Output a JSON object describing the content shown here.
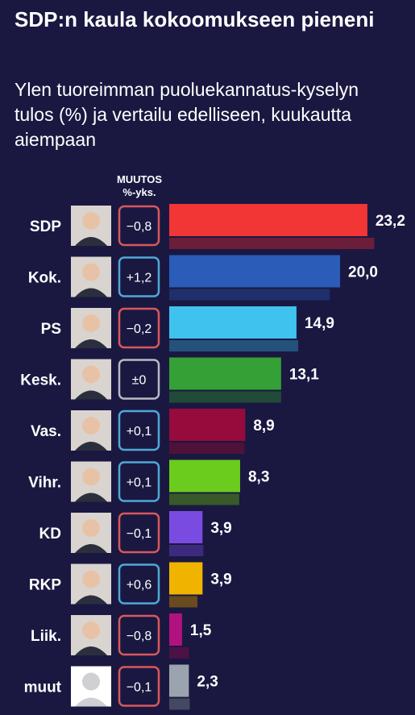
{
  "title": "SDP:n kaula kokoomukseen pieneni",
  "subtitle": "Ylen tuoreimman puoluekannatus-kyselyn tulos (%) ja vertailu edelliseen, kuukautta aiempaan",
  "change_header": {
    "line1": "MUUTOS",
    "line2": "%-yks."
  },
  "colors": {
    "background": "#1a1841",
    "change_negative": "#d9575c",
    "change_positive": "#4fa8d6",
    "change_zero": "#b9b9c4"
  },
  "chart_data": {
    "type": "bar",
    "orientation": "horizontal",
    "series": [
      {
        "name": "current",
        "values": [
          23.2,
          20.0,
          14.9,
          13.1,
          8.9,
          8.3,
          3.9,
          3.9,
          1.5,
          2.3
        ]
      },
      {
        "name": "previous",
        "values": [
          24.0,
          18.8,
          15.1,
          13.1,
          8.8,
          8.2,
          4.0,
          3.3,
          2.3,
          2.4
        ]
      }
    ],
    "categories": [
      "SDP",
      "Kok.",
      "PS",
      "Kesk.",
      "Vas.",
      "Vihr.",
      "KD",
      "RKP",
      "Liik.",
      "muut"
    ],
    "value_labels": [
      "23,2",
      "20,0",
      "14,9",
      "13,1",
      "8,9",
      "8,3",
      "3,9",
      "3,9",
      "1,5",
      "2,3"
    ],
    "changes": [
      "−0,8",
      "+1,2",
      "−0,2",
      "±0",
      "+0,1",
      "+0,1",
      "−0,1",
      "+0,6",
      "−0,8",
      "−0,1"
    ],
    "change_sign": [
      "negative",
      "positive",
      "negative",
      "zero",
      "positive",
      "positive",
      "negative",
      "positive",
      "negative",
      "negative"
    ],
    "bar_colors": [
      "#f23535",
      "#2a5cb8",
      "#3fc2ee",
      "#35a035",
      "#960a3c",
      "#6ccc1e",
      "#7a4be0",
      "#f0b400",
      "#b0127f",
      "#9aa3ae"
    ],
    "prev_bar_colors": [
      "#6a1e3a",
      "#1f2f6b",
      "#23527a",
      "#214a39",
      "#4e1239",
      "#375a28",
      "#3c2a7c",
      "#6a4b1f",
      "#4c1246",
      "#43495e"
    ],
    "xlim": [
      0,
      24
    ]
  }
}
